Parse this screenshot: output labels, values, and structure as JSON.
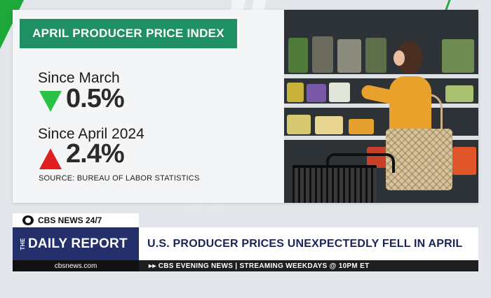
{
  "graphic": {
    "title": "APRIL PRODUCER PRICE INDEX",
    "stats": [
      {
        "label": "Since March",
        "value": "0.5%",
        "direction": "down",
        "color": "#29c245"
      },
      {
        "label": "Since April 2024",
        "value": "2.4%",
        "direction": "up",
        "color": "#e02020"
      }
    ],
    "source": "SOURCE: BUREAU OF LABOR STATISTICS"
  },
  "lower_third": {
    "network": "CBS NEWS 24/7",
    "show_prefix": "THE",
    "show_name": "DAILY REPORT",
    "headline": "U.S. PRODUCER PRICES UNEXPECTEDLY FELL IN APRIL",
    "url": "cbsnews.com",
    "ticker": "▸▸ CBS EVENING NEWS | STREAMING WEEKDAYS @ 10PM ET"
  },
  "colors": {
    "title_badge": "#1f8f64",
    "show_box": "#23306b",
    "accent_green": "#1fa83a"
  }
}
